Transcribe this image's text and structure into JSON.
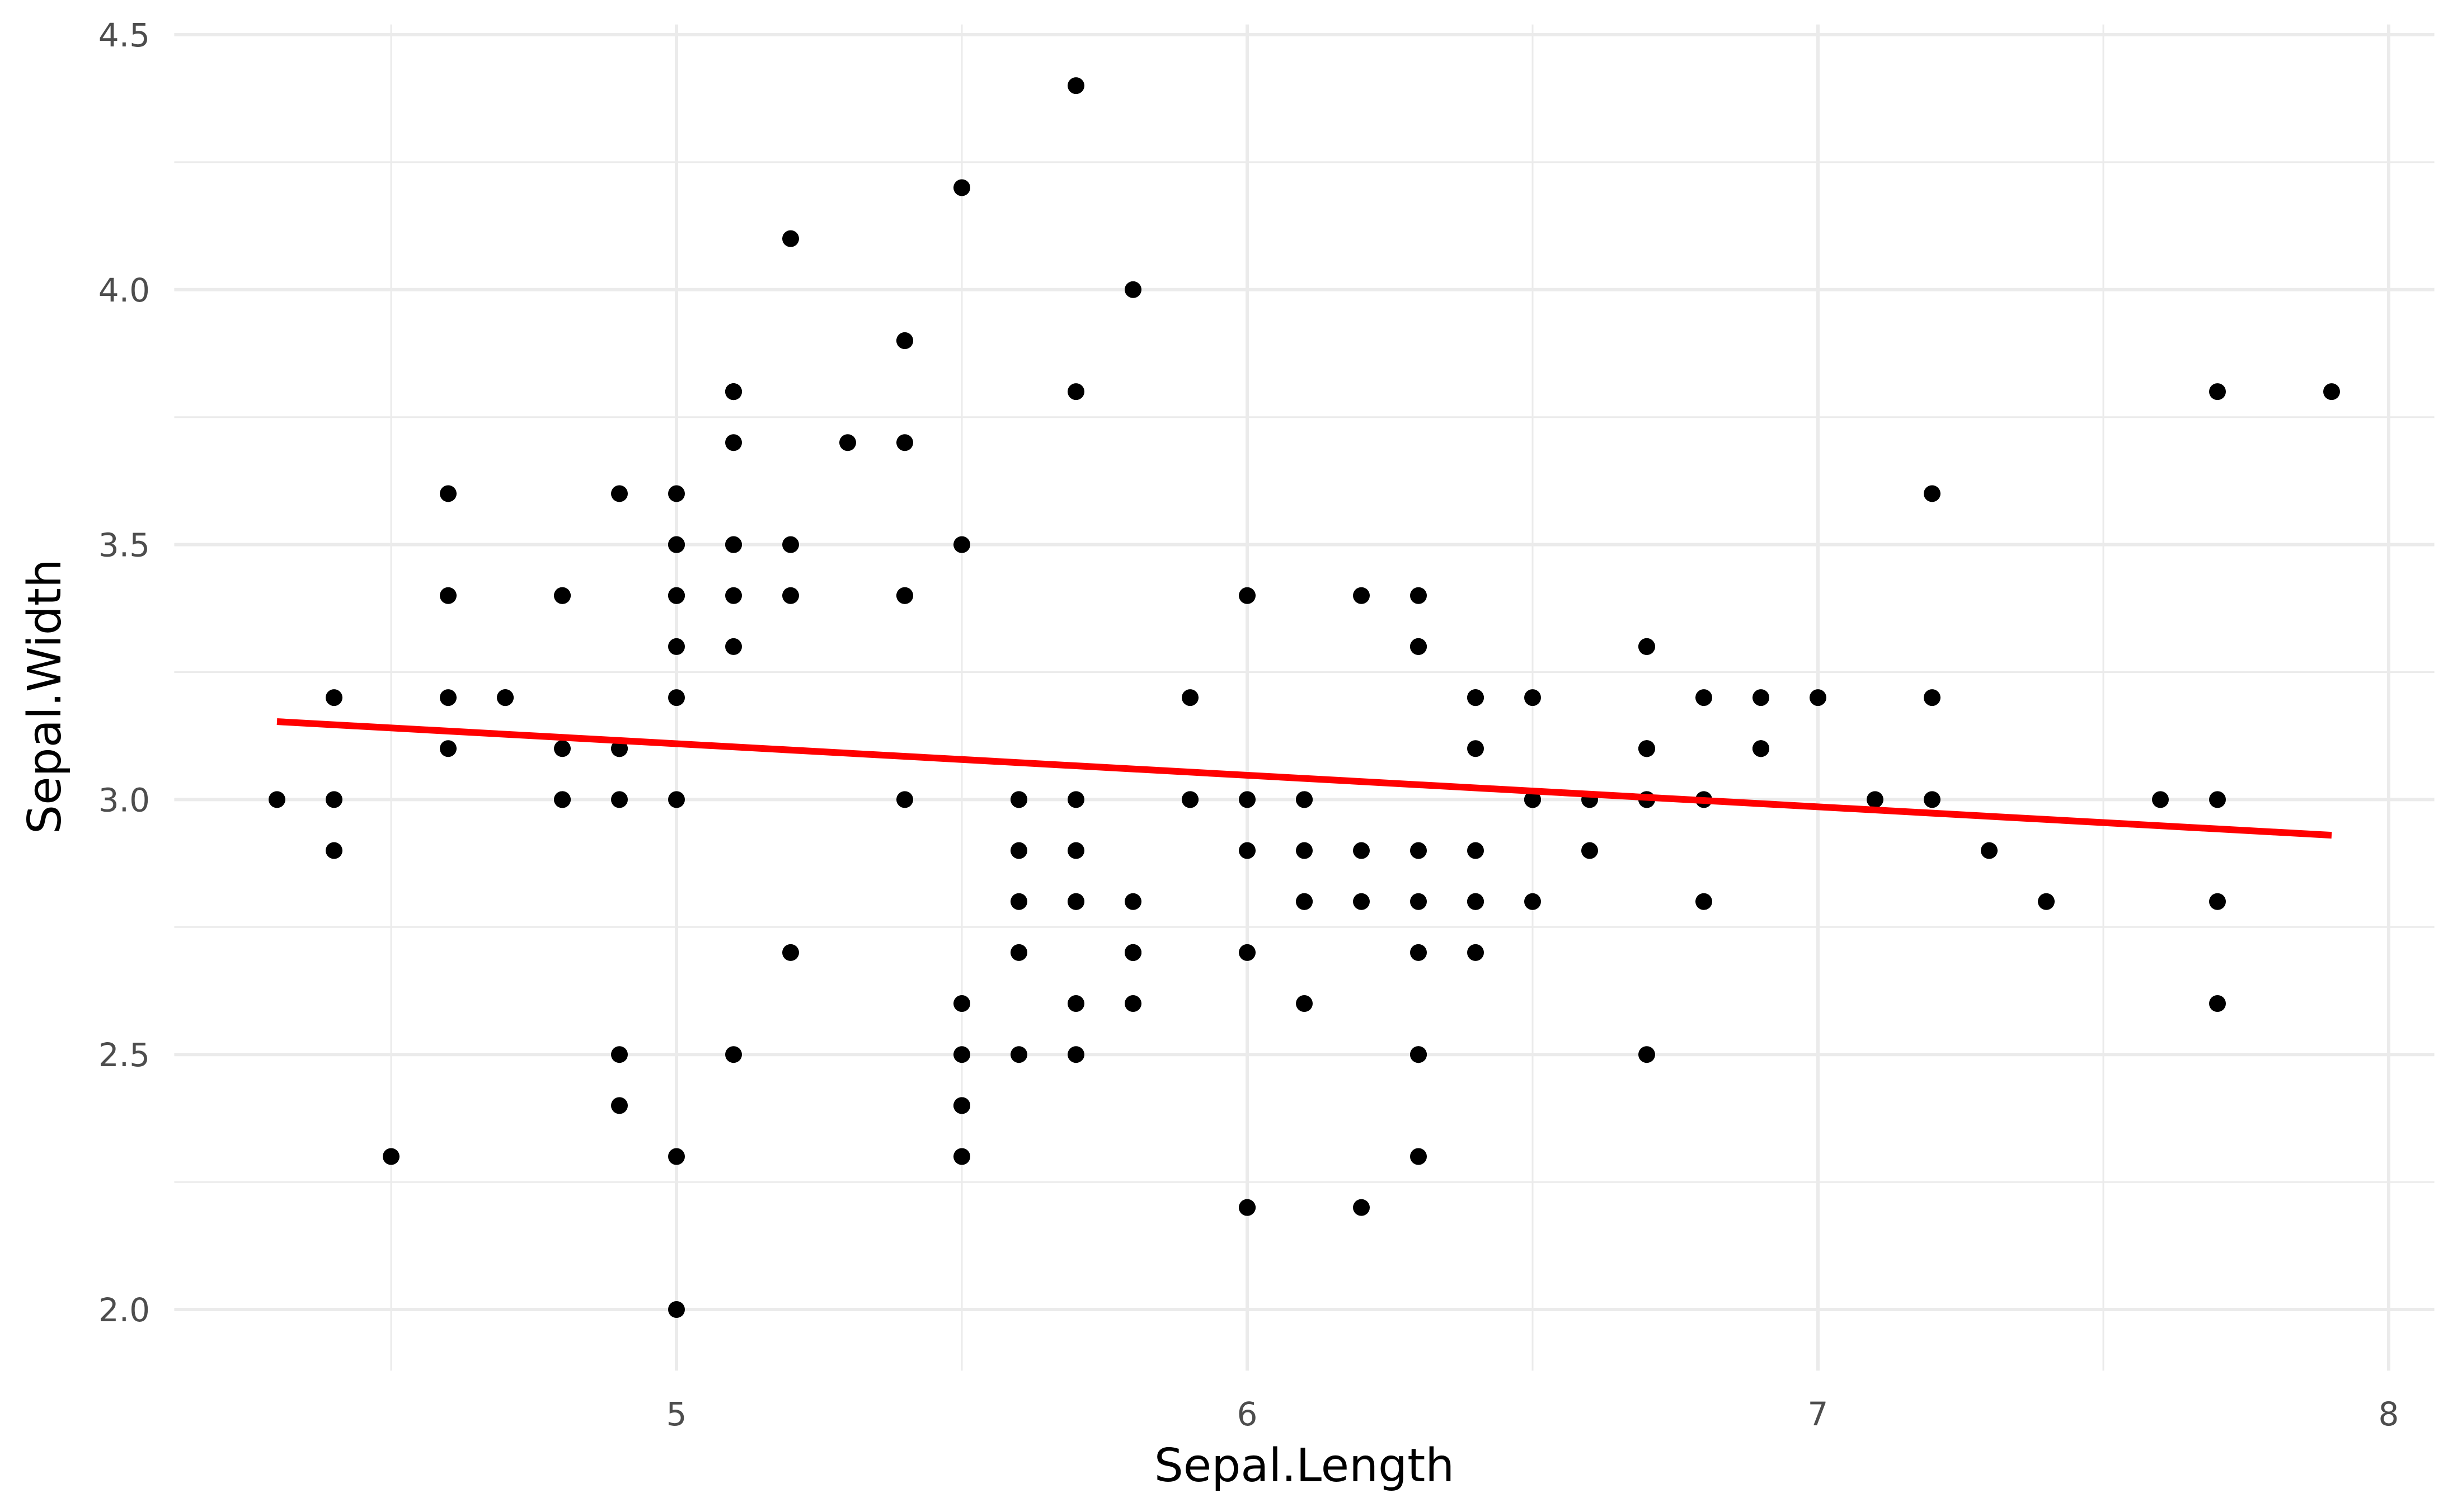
{
  "chart_data": {
    "type": "scatter",
    "title": "",
    "xlabel": "Sepal.Length",
    "ylabel": "Sepal.Width",
    "xlim": [
      4.12,
      8.08
    ],
    "ylim": [
      1.88,
      4.52
    ],
    "x_ticks": [
      5,
      6,
      7,
      8
    ],
    "x_tick_labels": [
      "5",
      "6",
      "7",
      "8"
    ],
    "y_ticks": [
      2.0,
      2.5,
      3.0,
      3.5,
      4.0,
      4.5
    ],
    "y_tick_labels": [
      "2.0",
      "2.5",
      "3.0",
      "3.5",
      "4.0",
      "4.5"
    ],
    "grid": true,
    "point_color": "#000000",
    "fit_line": {
      "method": "lm",
      "intercept": 3.41895,
      "slope": -0.06188,
      "x_range": [
        4.3,
        7.9
      ],
      "color": "#ff0000"
    },
    "points": [
      [
        5.1,
        3.5
      ],
      [
        4.9,
        3.0
      ],
      [
        4.7,
        3.2
      ],
      [
        4.6,
        3.1
      ],
      [
        5.0,
        3.6
      ],
      [
        5.4,
        3.9
      ],
      [
        4.6,
        3.4
      ],
      [
        5.0,
        3.4
      ],
      [
        4.4,
        2.9
      ],
      [
        4.9,
        3.1
      ],
      [
        5.4,
        3.7
      ],
      [
        4.8,
        3.4
      ],
      [
        4.8,
        3.0
      ],
      [
        4.3,
        3.0
      ],
      [
        5.8,
        4.0
      ],
      [
        5.7,
        4.4
      ],
      [
        5.4,
        3.9
      ],
      [
        5.1,
        3.5
      ],
      [
        5.7,
        3.8
      ],
      [
        5.1,
        3.8
      ],
      [
        5.4,
        3.4
      ],
      [
        5.1,
        3.7
      ],
      [
        4.6,
        3.6
      ],
      [
        5.1,
        3.3
      ],
      [
        4.8,
        3.4
      ],
      [
        5.0,
        3.0
      ],
      [
        5.0,
        3.4
      ],
      [
        5.2,
        3.5
      ],
      [
        5.2,
        3.4
      ],
      [
        4.7,
        3.2
      ],
      [
        4.8,
        3.1
      ],
      [
        5.4,
        3.4
      ],
      [
        5.2,
        4.1
      ],
      [
        5.5,
        4.2
      ],
      [
        4.9,
        3.1
      ],
      [
        5.0,
        3.2
      ],
      [
        5.5,
        3.5
      ],
      [
        4.9,
        3.6
      ],
      [
        4.4,
        3.0
      ],
      [
        5.1,
        3.4
      ],
      [
        5.0,
        3.5
      ],
      [
        4.5,
        2.3
      ],
      [
        4.4,
        3.2
      ],
      [
        5.0,
        3.5
      ],
      [
        5.1,
        3.8
      ],
      [
        4.8,
        3.0
      ],
      [
        5.1,
        3.8
      ],
      [
        4.6,
        3.2
      ],
      [
        5.3,
        3.7
      ],
      [
        5.0,
        3.3
      ],
      [
        7.0,
        3.2
      ],
      [
        6.4,
        3.2
      ],
      [
        6.9,
        3.1
      ],
      [
        5.5,
        2.3
      ],
      [
        6.5,
        2.8
      ],
      [
        5.7,
        2.8
      ],
      [
        6.3,
        3.3
      ],
      [
        4.9,
        2.4
      ],
      [
        6.6,
        2.9
      ],
      [
        5.2,
        2.7
      ],
      [
        5.0,
        2.0
      ],
      [
        5.9,
        3.0
      ],
      [
        6.0,
        2.2
      ],
      [
        6.1,
        2.9
      ],
      [
        5.6,
        2.9
      ],
      [
        6.7,
        3.1
      ],
      [
        5.6,
        3.0
      ],
      [
        5.8,
        2.7
      ],
      [
        6.2,
        2.2
      ],
      [
        5.6,
        2.5
      ],
      [
        5.9,
        3.2
      ],
      [
        6.1,
        2.8
      ],
      [
        6.3,
        2.5
      ],
      [
        6.1,
        2.8
      ],
      [
        6.4,
        2.9
      ],
      [
        6.6,
        3.0
      ],
      [
        6.8,
        2.8
      ],
      [
        6.7,
        3.0
      ],
      [
        6.0,
        2.9
      ],
      [
        5.7,
        2.6
      ],
      [
        5.5,
        2.4
      ],
      [
        5.5,
        2.4
      ],
      [
        5.8,
        2.7
      ],
      [
        6.0,
        2.7
      ],
      [
        5.4,
        3.0
      ],
      [
        6.0,
        3.4
      ],
      [
        6.7,
        3.1
      ],
      [
        6.3,
        2.3
      ],
      [
        5.6,
        3.0
      ],
      [
        5.5,
        2.5
      ],
      [
        5.5,
        2.6
      ],
      [
        6.1,
        3.0
      ],
      [
        5.8,
        2.6
      ],
      [
        5.0,
        2.3
      ],
      [
        5.6,
        2.7
      ],
      [
        5.7,
        3.0
      ],
      [
        5.7,
        2.9
      ],
      [
        6.2,
        2.9
      ],
      [
        5.1,
        2.5
      ],
      [
        5.7,
        2.8
      ],
      [
        6.3,
        3.3
      ],
      [
        5.8,
        2.7
      ],
      [
        7.1,
        3.0
      ],
      [
        6.3,
        2.9
      ],
      [
        6.5,
        3.0
      ],
      [
        7.6,
        3.0
      ],
      [
        4.9,
        2.5
      ],
      [
        7.3,
        2.9
      ],
      [
        6.7,
        2.5
      ],
      [
        7.2,
        3.6
      ],
      [
        6.5,
        3.2
      ],
      [
        6.4,
        2.7
      ],
      [
        6.8,
        3.0
      ],
      [
        5.7,
        2.5
      ],
      [
        5.8,
        2.8
      ],
      [
        6.4,
        3.2
      ],
      [
        6.5,
        3.0
      ],
      [
        7.7,
        3.8
      ],
      [
        7.7,
        2.6
      ],
      [
        6.0,
        2.2
      ],
      [
        6.9,
        3.2
      ],
      [
        5.6,
        2.8
      ],
      [
        7.7,
        2.8
      ],
      [
        6.3,
        2.7
      ],
      [
        6.7,
        3.3
      ],
      [
        7.2,
        3.2
      ],
      [
        6.2,
        2.8
      ],
      [
        6.1,
        3.0
      ],
      [
        6.4,
        2.8
      ],
      [
        7.2,
        3.0
      ],
      [
        7.4,
        2.8
      ],
      [
        7.9,
        3.8
      ],
      [
        6.4,
        2.8
      ],
      [
        6.3,
        2.8
      ],
      [
        6.1,
        2.6
      ],
      [
        7.7,
        3.0
      ],
      [
        6.3,
        3.4
      ],
      [
        6.4,
        3.1
      ],
      [
        6.0,
        3.0
      ],
      [
        6.9,
        3.1
      ],
      [
        6.7,
        3.1
      ],
      [
        6.9,
        3.1
      ],
      [
        5.8,
        2.7
      ],
      [
        6.8,
        3.2
      ],
      [
        6.7,
        3.3
      ],
      [
        6.7,
        3.0
      ],
      [
        6.3,
        2.5
      ],
      [
        6.5,
        3.0
      ],
      [
        6.2,
        3.4
      ],
      [
        5.9,
        3.0
      ]
    ]
  }
}
